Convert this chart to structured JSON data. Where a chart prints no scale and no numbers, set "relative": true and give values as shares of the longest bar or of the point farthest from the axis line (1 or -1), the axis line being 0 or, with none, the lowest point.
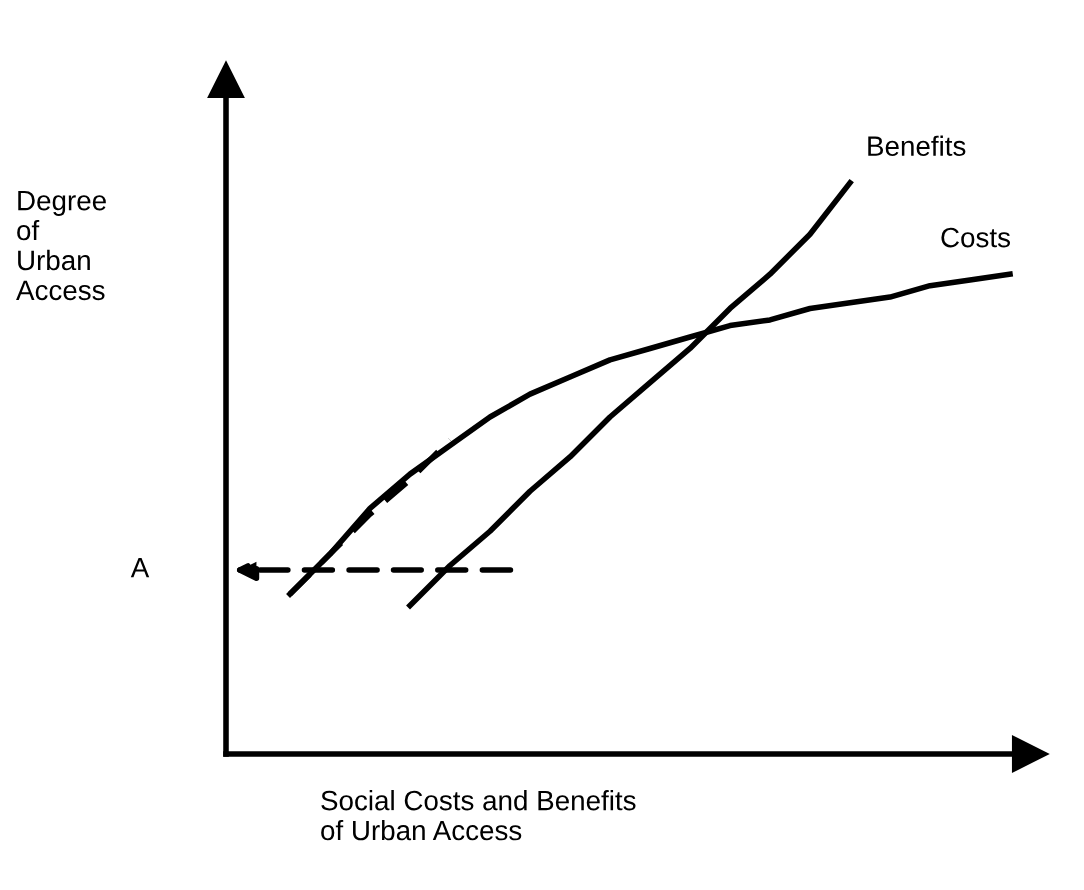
{
  "chart_data": {
    "type": "line",
    "relative": true,
    "xlabel": "Social Costs and Benefits\nof Urban Access",
    "ylabel": "Degree\nof\nUrban\nAccess",
    "categories": [
      null,
      null,
      null,
      null,
      null,
      null,
      null,
      null,
      null,
      null,
      null,
      null,
      null,
      null,
      null,
      null,
      null,
      null,
      null,
      null
    ],
    "series": [
      {
        "name": "Benefits",
        "color": "#000000",
        "line_style": "solid",
        "values": [
          null,
          null,
          null,
          null,
          0.26,
          0.33,
          0.39,
          0.46,
          0.52,
          0.59,
          0.65,
          0.71,
          0.78,
          0.84,
          0.91,
          1.0,
          null,
          null,
          null,
          null
        ]
      },
      {
        "name": "Costs",
        "color": "#000000",
        "line_style": "solid",
        "values": [
          null,
          0.28,
          0.35,
          0.43,
          0.49,
          0.54,
          0.59,
          0.63,
          0.66,
          0.69,
          0.71,
          0.73,
          0.75,
          0.76,
          0.78,
          0.79,
          0.8,
          0.82,
          0.83,
          0.84
        ]
      },
      {
        "color": "#000000",
        "line_style": "dashed",
        "values": [
          null,
          0.28,
          0.35,
          0.42,
          0.48,
          0.55,
          null,
          null,
          null,
          null,
          null,
          null,
          null,
          null,
          null,
          null,
          null,
          null,
          null,
          null
        ]
      }
    ],
    "annotations": [
      "A"
    ]
  }
}
